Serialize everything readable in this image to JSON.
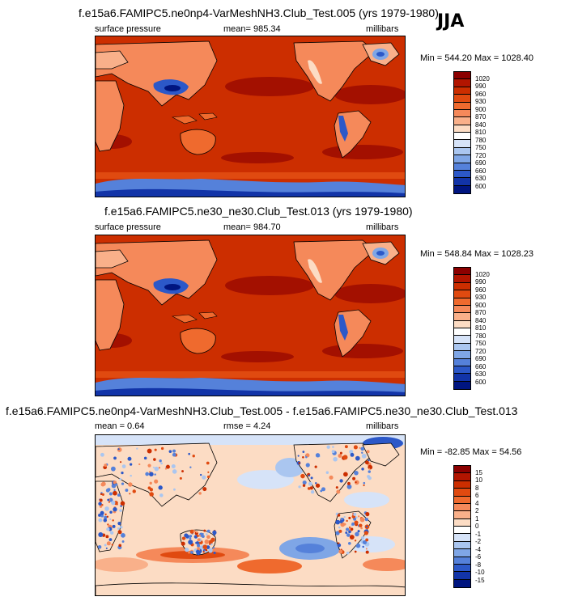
{
  "season": "JJA",
  "panels": [
    {
      "title": "f.e15a6.FAMIPC5.ne0np4-VarMeshNH3.Club_Test.005 (yrs 1979-1980)",
      "left_label": "surface pressure",
      "center_label": "mean= 985.34",
      "right_label": "millibars",
      "minmax": "Min = 544.20 Max = 1028.40",
      "colorbar_labels": [
        "1020",
        "990",
        "960",
        "930",
        "900",
        "870",
        "840",
        "810",
        "780",
        "750",
        "720",
        "690",
        "660",
        "630",
        "600"
      ],
      "colorbar_colors": [
        "#8b0000",
        "#b21500",
        "#cc2e00",
        "#e04a10",
        "#ef6a2e",
        "#f5895a",
        "#f9b08a",
        "#fcdcc4",
        "#ffffff",
        "#d6e3f8",
        "#aac6f0",
        "#7fa6e6",
        "#5581da",
        "#2c58c8",
        "#1234a8",
        "#001580"
      ]
    },
    {
      "title": "f.e15a6.FAMIPC5.ne30_ne30.Club_Test.013 (yrs 1979-1980)",
      "left_label": "surface pressure",
      "center_label": "mean= 984.70",
      "right_label": "millibars",
      "minmax": "Min = 548.84 Max = 1028.23",
      "colorbar_labels": [
        "1020",
        "990",
        "960",
        "930",
        "900",
        "870",
        "840",
        "810",
        "780",
        "750",
        "720",
        "690",
        "660",
        "630",
        "600"
      ],
      "colorbar_colors": [
        "#8b0000",
        "#b21500",
        "#cc2e00",
        "#e04a10",
        "#ef6a2e",
        "#f5895a",
        "#f9b08a",
        "#fcdcc4",
        "#ffffff",
        "#d6e3f8",
        "#aac6f0",
        "#7fa6e6",
        "#5581da",
        "#2c58c8",
        "#1234a8",
        "#001580"
      ]
    },
    {
      "title": "f.e15a6.FAMIPC5.ne0np4-VarMeshNH3.Club_Test.005 - f.e15a6.FAMIPC5.ne30_ne30.Club_Test.013",
      "left_label": "mean =   0.64",
      "center_label": "rmse =   4.24",
      "right_label": "millibars",
      "minmax": "Min = -82.85 Max =  54.56",
      "colorbar_labels": [
        "15",
        "10",
        "8",
        "6",
        "4",
        "2",
        "1",
        "0",
        "-1",
        "-2",
        "-4",
        "-6",
        "-8",
        "-10",
        "-15"
      ],
      "colorbar_colors": [
        "#8b0000",
        "#b21500",
        "#cc2e00",
        "#e04a10",
        "#ef6a2e",
        "#f5895a",
        "#f9b08a",
        "#fcdcc4",
        "#ffffff",
        "#d6e3f8",
        "#aac6f0",
        "#7fa6e6",
        "#5581da",
        "#2c58c8",
        "#1234a8",
        "#001580"
      ]
    }
  ]
}
